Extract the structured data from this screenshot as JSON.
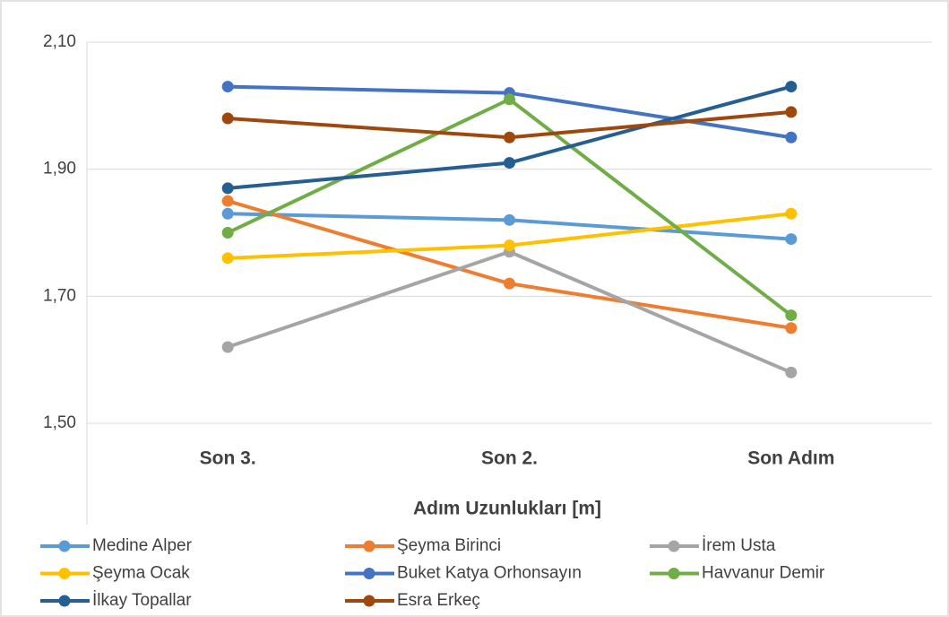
{
  "chart_data": {
    "type": "line",
    "x_label": "Adım Uzunlukları [m]",
    "categories": [
      "Son 3.",
      "Son 2.",
      "Son Adım"
    ],
    "series": [
      {
        "name": "Medine Alper",
        "color": "#5b9bd5",
        "values": [
          1.83,
          1.82,
          1.79
        ]
      },
      {
        "name": "Şeyma Birinci",
        "color": "#ed7d31",
        "values": [
          1.85,
          1.72,
          1.65
        ]
      },
      {
        "name": "İrem Usta",
        "color": "#a5a5a5",
        "values": [
          1.62,
          1.77,
          1.58
        ]
      },
      {
        "name": "Şeyma Ocak",
        "color": "#ffc000",
        "values": [
          1.76,
          1.78,
          1.83
        ]
      },
      {
        "name": "Buket Katya Orhonsayın",
        "color": "#4472c4",
        "values": [
          2.03,
          2.02,
          1.95
        ]
      },
      {
        "name": "Havvanur Demir",
        "color": "#70ad47",
        "values": [
          1.8,
          2.01,
          1.67
        ]
      },
      {
        "name": "İlkay Topallar",
        "color": "#255e91",
        "values": [
          1.87,
          1.91,
          2.03
        ]
      },
      {
        "name": "Esra Erkeç",
        "color": "#9e480e",
        "values": [
          1.98,
          1.95,
          1.99
        ]
      }
    ],
    "ylim": [
      1.5,
      2.1
    ],
    "yticks": [
      {
        "value": 1.5,
        "label": "1,50"
      },
      {
        "value": 1.7,
        "label": "1,70"
      },
      {
        "value": 1.9,
        "label": "1,90"
      },
      {
        "value": 2.1,
        "label": "2,10"
      }
    ],
    "grid": true,
    "legend": "bottom"
  }
}
